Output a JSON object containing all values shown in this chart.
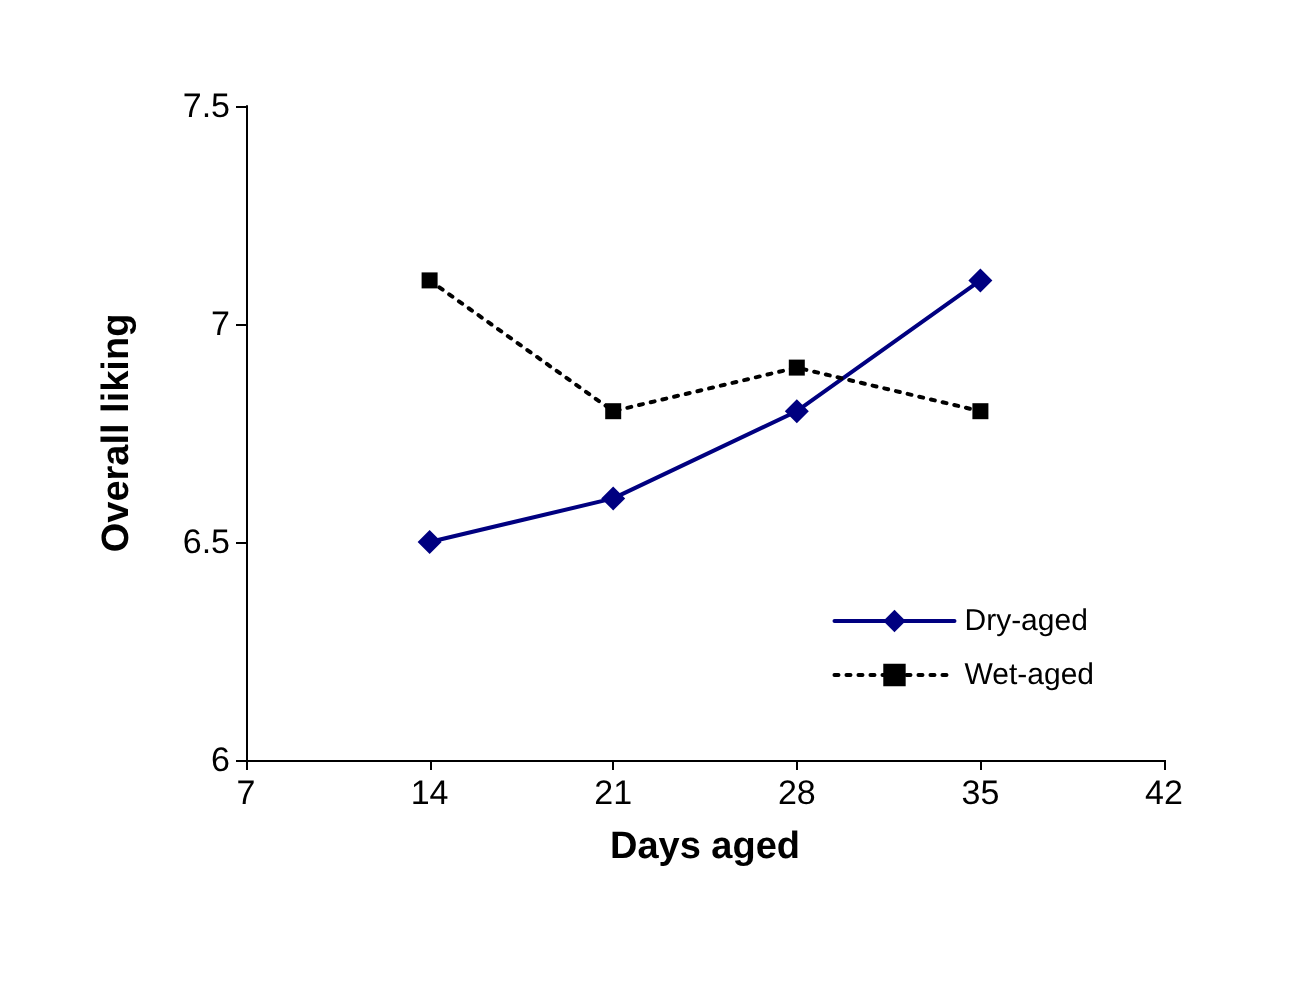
{
  "chart_data": {
    "type": "line",
    "xlabel": "Days aged",
    "ylabel": "Overall liking",
    "x": [
      14,
      21,
      28,
      35
    ],
    "series": [
      {
        "name": "Dry-aged",
        "color": "#000080",
        "values": [
          6.5,
          6.6,
          6.8,
          7.1
        ],
        "marker": "diamond",
        "line_style": "solid"
      },
      {
        "name": "Wet-aged",
        "color": "#000000",
        "values": [
          7.1,
          6.8,
          6.9,
          6.8
        ],
        "marker": "square",
        "line_style": "dotted"
      }
    ],
    "xlim": [
      7,
      42
    ],
    "xticks": [
      7,
      14,
      21,
      28,
      35,
      42
    ],
    "ylim": [
      6,
      7.5
    ],
    "yticks": [
      6,
      6.5,
      7,
      7.5
    ],
    "grid": false,
    "legend": "right"
  }
}
